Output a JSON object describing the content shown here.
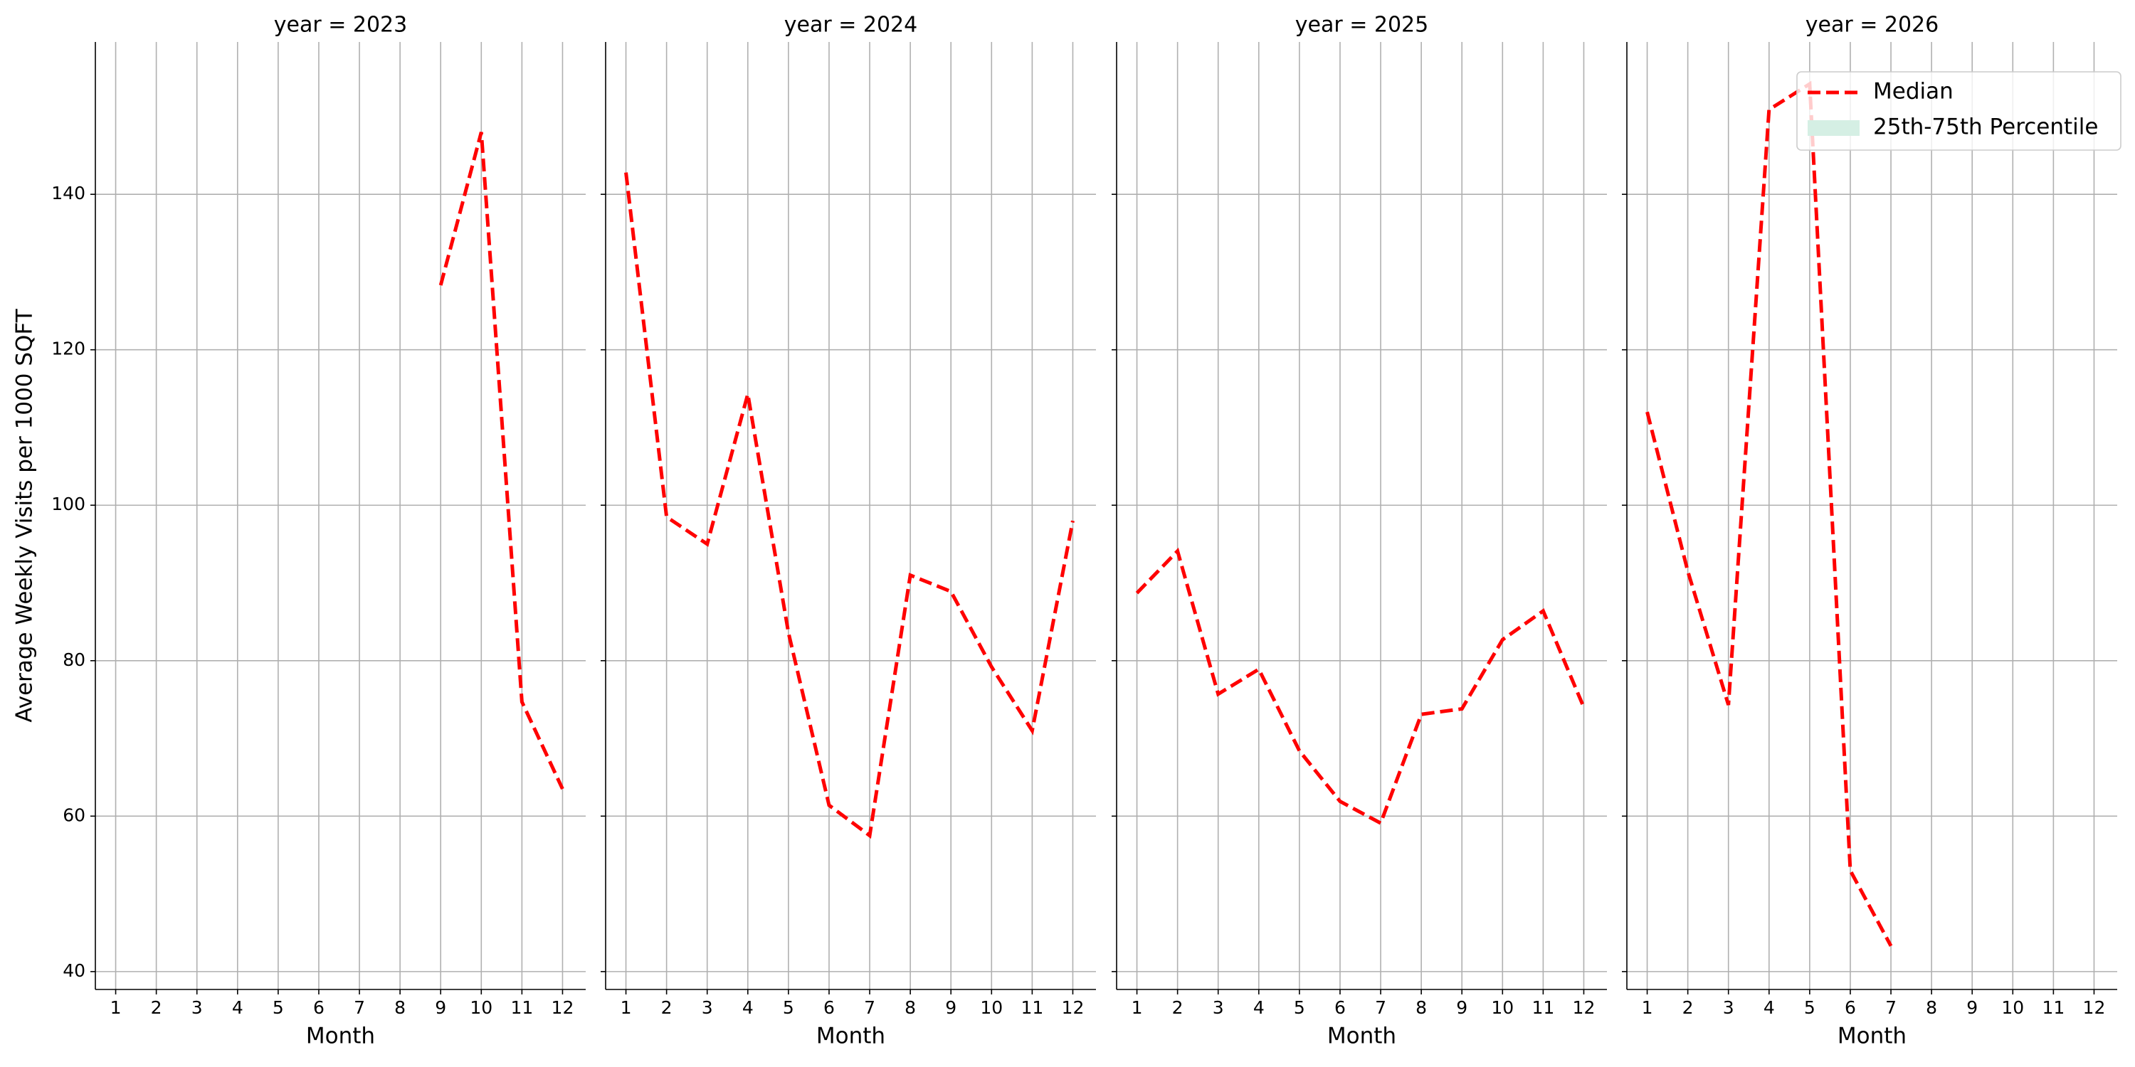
{
  "chart_data": [
    {
      "type": "line",
      "title": "year = 2023",
      "xlabel": "Month",
      "ylabel": "Average Weekly Visits per 1000 SQFT",
      "x": [
        9,
        10,
        11,
        12
      ],
      "series": [
        {
          "name": "Median",
          "color": "#ff0000",
          "values": [
            128.3,
            148,
            74.7,
            63.5
          ]
        }
      ],
      "xlim": [
        0.5,
        12.57
      ],
      "ylim": [
        37.7,
        159.6
      ],
      "xticks": [
        1,
        2,
        3,
        4,
        5,
        6,
        7,
        8,
        9,
        10,
        11,
        12
      ],
      "yticks": [
        40,
        60,
        80,
        100,
        120,
        140
      ],
      "grid": true
    },
    {
      "type": "line",
      "title": "year = 2024",
      "xlabel": "Month",
      "x": [
        1,
        2,
        3,
        4,
        5,
        6,
        7,
        8,
        9,
        10,
        11,
        12
      ],
      "series": [
        {
          "name": "Median",
          "color": "#ff0000",
          "values": [
            142.8,
            98.5,
            95,
            114.3,
            83.6,
            61.4,
            57.5,
            91,
            88.9,
            79.2,
            71,
            98
          ]
        }
      ],
      "xlim": [
        0.5,
        12.57
      ],
      "ylim": [
        37.7,
        159.6
      ],
      "xticks": [
        1,
        2,
        3,
        4,
        5,
        6,
        7,
        8,
        9,
        10,
        11,
        12
      ],
      "yticks": [
        40,
        60,
        80,
        100,
        120,
        140
      ],
      "grid": true
    },
    {
      "type": "line",
      "title": "year = 2025",
      "xlabel": "Month",
      "x": [
        1,
        2,
        3,
        4,
        5,
        6,
        7,
        8,
        9,
        10,
        11,
        12
      ],
      "series": [
        {
          "name": "Median",
          "color": "#ff0000",
          "values": [
            88.7,
            94.1,
            75.7,
            78.9,
            68.4,
            61.9,
            59.1,
            73.1,
            73.8,
            82.7,
            86.4,
            74
          ]
        }
      ],
      "xlim": [
        0.5,
        12.57
      ],
      "ylim": [
        37.7,
        159.6
      ],
      "xticks": [
        1,
        2,
        3,
        4,
        5,
        6,
        7,
        8,
        9,
        10,
        11,
        12
      ],
      "yticks": [
        40,
        60,
        80,
        100,
        120,
        140
      ],
      "grid": true
    },
    {
      "type": "line",
      "title": "year = 2026",
      "xlabel": "Month",
      "x": [
        1,
        2,
        3,
        4,
        5,
        6,
        7
      ],
      "series": [
        {
          "name": "Median",
          "color": "#ff0000",
          "values": [
            112,
            91.5,
            74.3,
            150.9,
            154.2,
            53,
            43.3
          ]
        }
      ],
      "bands": [
        {
          "name": "25th-75th Percentile",
          "color": "#d5efe4"
        }
      ],
      "legend": "upper right",
      "xlim": [
        0.5,
        12.57
      ],
      "ylim": [
        37.7,
        159.6
      ],
      "xticks": [
        1,
        2,
        3,
        4,
        5,
        6,
        7,
        8,
        9,
        10,
        11,
        12
      ],
      "yticks": [
        40,
        60,
        80,
        100,
        120,
        140
      ],
      "grid": true
    }
  ]
}
